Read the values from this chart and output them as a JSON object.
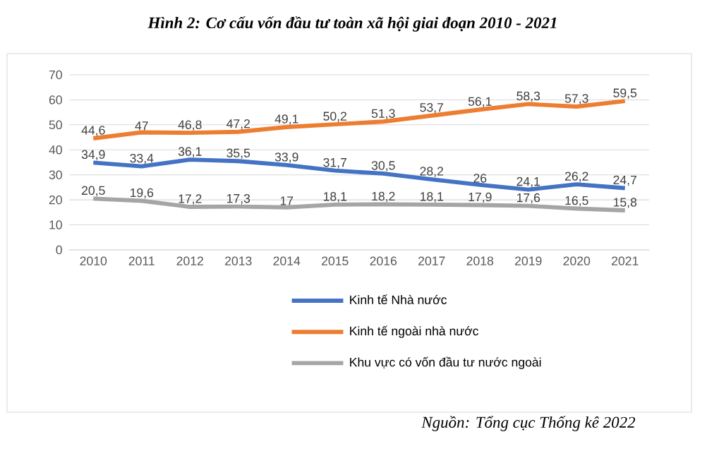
{
  "chart_data": {
    "type": "line",
    "title": "Hình 2: Cơ cấu vốn đầu tư toàn xã hội giai đoạn 2010 - 2021",
    "categories": [
      "2010",
      "2011",
      "2012",
      "2013",
      "2014",
      "2015",
      "2016",
      "2017",
      "2018",
      "2019",
      "2020",
      "2021"
    ],
    "series": [
      {
        "name": "Kinh tế Nhà nước",
        "color": "#4472c4",
        "values": [
          34.9,
          33.4,
          36.1,
          35.5,
          33.9,
          31.7,
          30.5,
          28.2,
          26,
          24.1,
          26.2,
          24.7
        ],
        "value_labels": [
          "34,9",
          "33,4",
          "36,1",
          "35,5",
          "33,9",
          "31,7",
          "30,5",
          "28,2",
          "26",
          "24,1",
          "26,2",
          "24,7"
        ]
      },
      {
        "name": "Kinh tế ngoài nhà nước",
        "color": "#ed7d31",
        "values": [
          44.6,
          47,
          46.8,
          47.2,
          49.1,
          50.2,
          51.3,
          53.7,
          56.1,
          58.3,
          57.3,
          59.5
        ],
        "value_labels": [
          "44,6",
          "47",
          "46,8",
          "47,2",
          "49,1",
          "50,2",
          "51,3",
          "53,7",
          "56,1",
          "58,3",
          "57,3",
          "59,5"
        ]
      },
      {
        "name": "Khu vực có vốn đầu tư nước ngoài",
        "color": "#a5a5a5",
        "values": [
          20.5,
          19.6,
          17.2,
          17.3,
          17,
          18.1,
          18.2,
          18.1,
          17.9,
          17.6,
          16.5,
          15.8
        ],
        "value_labels": [
          "20,5",
          "19,6",
          "17,2",
          "17,3",
          "17",
          "18,1",
          "18,2",
          "18,1",
          "17,9",
          "17,6",
          "16,5",
          "15,8"
        ]
      }
    ],
    "ylim": [
      0,
      70
    ],
    "yticks": [
      0,
      10,
      20,
      30,
      40,
      50,
      60,
      70
    ],
    "grid": "y",
    "legend": "bottom",
    "marker": "none",
    "line_style": "solid",
    "annotations": [
      "Nguồn: Tổng cục Thống kê 2022"
    ]
  }
}
